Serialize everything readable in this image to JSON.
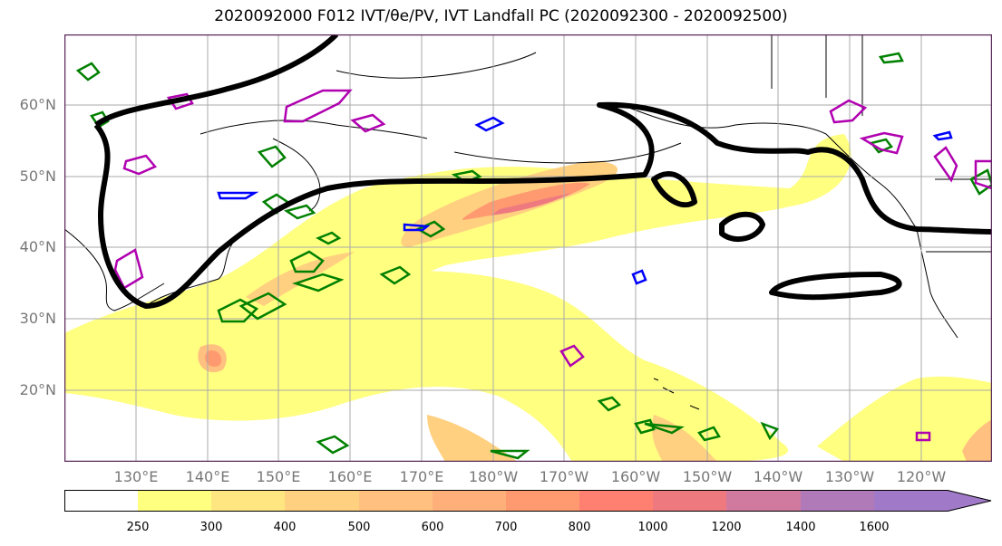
{
  "title": "2020092000 F012 IVT/θe/PV, IVT Landfall PC (2020092300 - 2020092500)",
  "map": {
    "region": "North Pacific",
    "projection": "PlateCarree",
    "lon_range": [
      120,
      250
    ],
    "lat_range": [
      10,
      70
    ],
    "lat_labels": [
      "60°N",
      "50°N",
      "40°N",
      "30°N",
      "20°N"
    ],
    "lon_labels": [
      "130°E",
      "140°E",
      "150°E",
      "160°E",
      "170°E",
      "180°W",
      "170°W",
      "160°W",
      "150°W",
      "140°W",
      "130°W",
      "120°W"
    ],
    "grid": true,
    "fill_field": "IVT",
    "contour_colors": {
      "landfall_pc": "#000000",
      "theta_e": "#008000",
      "pv_blue": "#0000ff",
      "pv_magenta": "#b000b0",
      "coastline": "#000000"
    }
  },
  "colorbar": {
    "levels": [
      "250",
      "300",
      "400",
      "500",
      "600",
      "700",
      "800",
      "1000",
      "1200",
      "1400",
      "1600"
    ],
    "colors": [
      "#ffffff",
      "#ffff80",
      "#ffe680",
      "#ffd080",
      "#ffc080",
      "#ffb07a",
      "#ff9a70",
      "#ff8070",
      "#ee7a80",
      "#d07aa0",
      "#b07ab8",
      "#a07ac8"
    ],
    "extend": "max"
  }
}
